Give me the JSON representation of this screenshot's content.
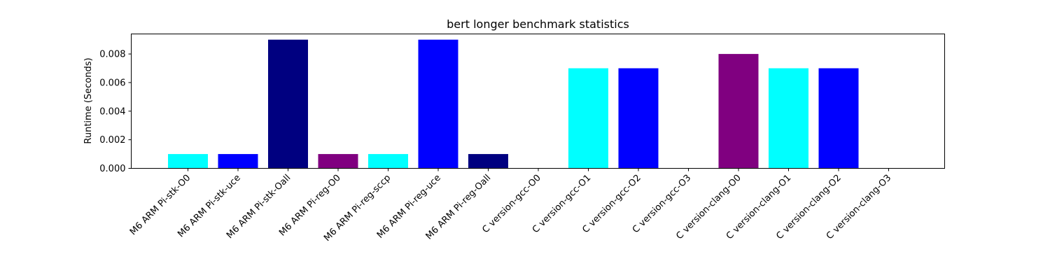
{
  "chart_data": {
    "type": "bar",
    "title": "bert longer benchmark statistics",
    "xlabel": "",
    "ylabel": "Runtime (Seconds)",
    "ylim": [
      0,
      0.0094
    ],
    "yticks": [
      "0.000",
      "0.002",
      "0.004",
      "0.006",
      "0.008"
    ],
    "categories": [
      "M6 ARM Pi-stk-O0",
      "M6 ARM Pi-stk-uce",
      "M6 ARM Pi-stk-Oall",
      "M6 ARM Pi-reg-O0",
      "M6 ARM Pi-reg-sccp",
      "M6 ARM Pi-reg-uce",
      "M6 ARM Pi-reg-Oall",
      "C version-gcc-O0",
      "C version-gcc-O1",
      "C version-gcc-O2",
      "C version-gcc-O3",
      "C version-clang-O0",
      "C version-clang-O1",
      "C version-clang-O2",
      "C version-clang-O3"
    ],
    "values": [
      0.001,
      0.001,
      0.009,
      0.001,
      0.001,
      0.009,
      0.001,
      0,
      0.007,
      0.007,
      0,
      0.008,
      0.007,
      0.007,
      0
    ],
    "colors": [
      "#00ffff",
      "#0000ff",
      "#000080",
      "#800080",
      "#00ffff",
      "#0000ff",
      "#000080",
      "#800080",
      "#00ffff",
      "#0000ff",
      "#000080",
      "#800080",
      "#00ffff",
      "#0000ff",
      "#000080"
    ],
    "grid": false,
    "legend": "none"
  }
}
